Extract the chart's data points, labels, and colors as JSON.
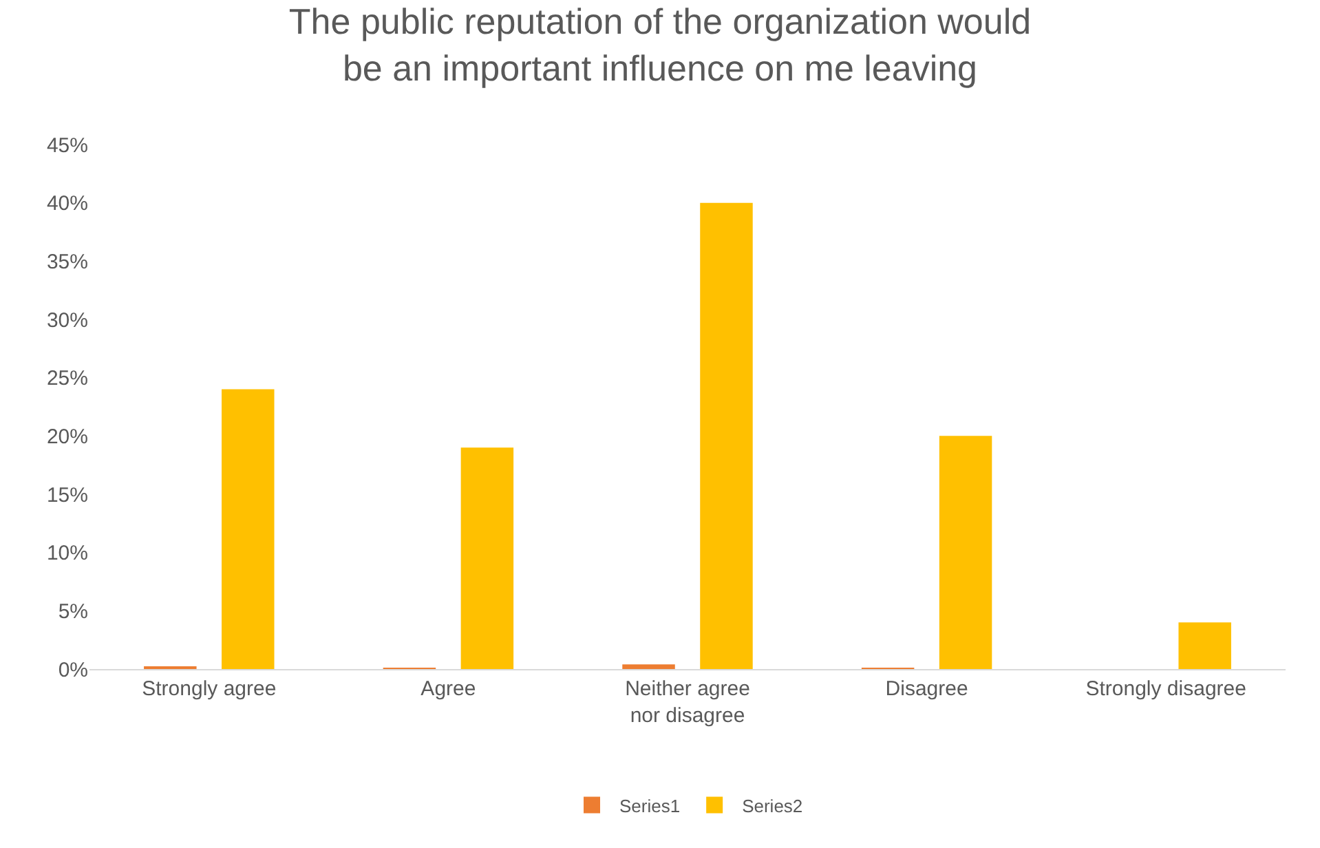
{
  "chart_data": {
    "type": "bar",
    "title": "The public reputation of the organization would\nbe an important influence on me leaving",
    "categories": [
      "Strongly agree",
      "Agree",
      "Neither agree\nnor disagree",
      "Disagree",
      "Strongly disagree"
    ],
    "series": [
      {
        "name": "Series1",
        "color": "#ed7d31",
        "values": [
          0.2,
          0.1,
          0.4,
          0.1,
          0
        ]
      },
      {
        "name": "Series2",
        "color": "#ffc000",
        "values": [
          24,
          19,
          40,
          20,
          4
        ]
      }
    ],
    "ylim": [
      0,
      45
    ],
    "yticks": [
      {
        "value": 0,
        "label": "0%"
      },
      {
        "value": 5,
        "label": "5%"
      },
      {
        "value": 10,
        "label": "10%"
      },
      {
        "value": 15,
        "label": "15%"
      },
      {
        "value": 20,
        "label": "20%"
      },
      {
        "value": 25,
        "label": "25%"
      },
      {
        "value": 30,
        "label": "30%"
      },
      {
        "value": 35,
        "label": "35%"
      },
      {
        "value": 40,
        "label": "40%"
      },
      {
        "value": 45,
        "label": "45%"
      }
    ],
    "grid": false,
    "legend": "bottom"
  }
}
